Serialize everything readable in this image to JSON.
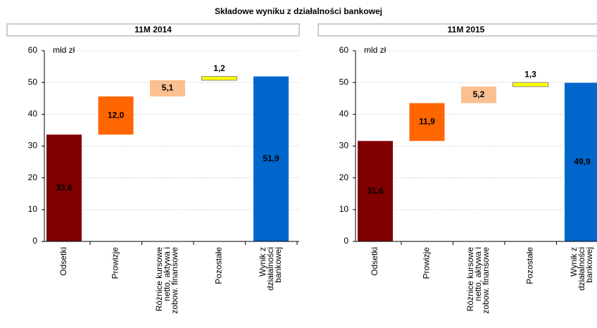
{
  "title": "Składowe wyniku z działalności bankowej",
  "chart_data": [
    {
      "type": "waterfall",
      "title": "11M 2014",
      "y_label": "mld zł",
      "categories": [
        "Odsetki",
        "Prowizje",
        "Różnice kursowe\nnetto, aktywa i\nzobow. finansowe",
        "Pozostałe",
        "Wynik z\ndziałalności\nbankowej"
      ],
      "values": [
        33.6,
        12.0,
        5.1,
        1.2,
        51.9
      ],
      "value_labels": [
        "33,6",
        "12,0",
        "5,1",
        "1,2",
        "51,9"
      ],
      "measure": [
        "relative",
        "relative",
        "relative",
        "relative",
        "total"
      ],
      "colors": [
        "#800000",
        "#ff6600",
        "#fac090",
        "#ffff00",
        "#0066cc"
      ],
      "label_colors": [
        "#ffffff",
        "#000000",
        "#000000",
        "#000000",
        "#ffffff"
      ],
      "ylim": [
        0,
        60
      ],
      "yticks": [
        0,
        10,
        20,
        30,
        40,
        50,
        60
      ],
      "grid": true
    },
    {
      "type": "waterfall",
      "title": "11M 2015",
      "y_label": "mld zł",
      "categories": [
        "Odsetki",
        "Prowizje",
        "Różnice kursowe\nnetto, aktywa i\nzobow. finansowe",
        "Pozostałe",
        "Wynik z\ndziałalności\nbankowej"
      ],
      "values": [
        31.6,
        11.9,
        5.2,
        1.3,
        49.9
      ],
      "value_labels": [
        "31,6",
        "11,9",
        "5,2",
        "1,3",
        "49,9"
      ],
      "measure": [
        "relative",
        "relative",
        "relative",
        "relative",
        "total"
      ],
      "colors": [
        "#800000",
        "#ff6600",
        "#fac090",
        "#ffff00",
        "#0066cc"
      ],
      "label_colors": [
        "#ffffff",
        "#000000",
        "#000000",
        "#000000",
        "#ffffff"
      ],
      "ylim": [
        0,
        60
      ],
      "yticks": [
        0,
        10,
        20,
        30,
        40,
        50,
        60
      ],
      "grid": true
    }
  ]
}
